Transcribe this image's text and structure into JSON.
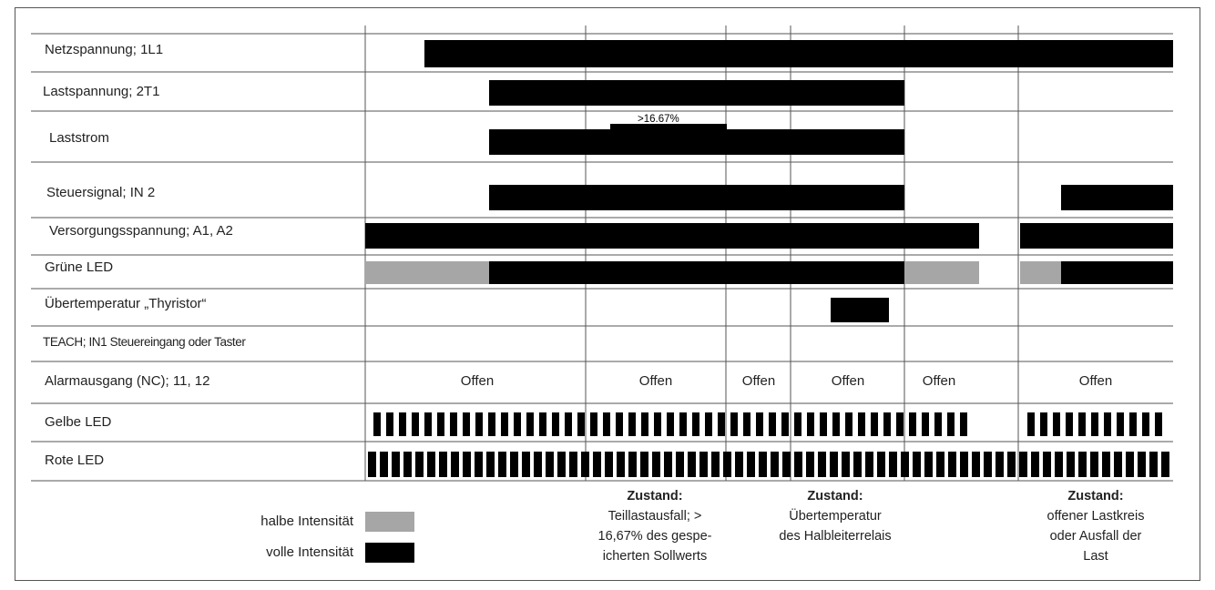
{
  "rows": [
    {
      "label": "Netzspannung; 1L1"
    },
    {
      "label": "Lastspannung; 2T1"
    },
    {
      "label": "Laststrom",
      "note": ">16.67%"
    },
    {
      "label": "Steuersignal; IN 2"
    },
    {
      "label": "Versorgungsspannung; A1, A2"
    },
    {
      "label": "Grüne LED"
    },
    {
      "label": "Übertemperatur „Thyristor“"
    },
    {
      "label": "TEACH; IN1 Steuereingang oder Taster"
    },
    {
      "label": "Alarmausgang (NC); 11, 12"
    },
    {
      "label": "Gelbe LED"
    },
    {
      "label": "Rote LED"
    }
  ],
  "alarm_states": [
    "Offen",
    "Offen",
    "Offen",
    "Offen",
    "Offen",
    "Offen"
  ],
  "states": [
    {
      "heading": "Zustand:",
      "lines": [
        "Teillastausfall; >",
        "16,67% des gespe-",
        "icherten Sollwerts"
      ]
    },
    {
      "heading": "Zustand:",
      "lines": [
        "Übertemperatur",
        "des Halbleiterrelais"
      ]
    },
    {
      "heading": "Zustand:",
      "lines": [
        "offener Lastkreis",
        "oder Ausfall der",
        "Last"
      ]
    }
  ],
  "legend": [
    {
      "label": "halbe Intensität",
      "color": "#a6a6a6"
    },
    {
      "label": "volle Intensität",
      "color": "#000000"
    }
  ],
  "colors": {
    "full": "#000000",
    "half": "#a6a6a6",
    "grid": "#555555"
  }
}
